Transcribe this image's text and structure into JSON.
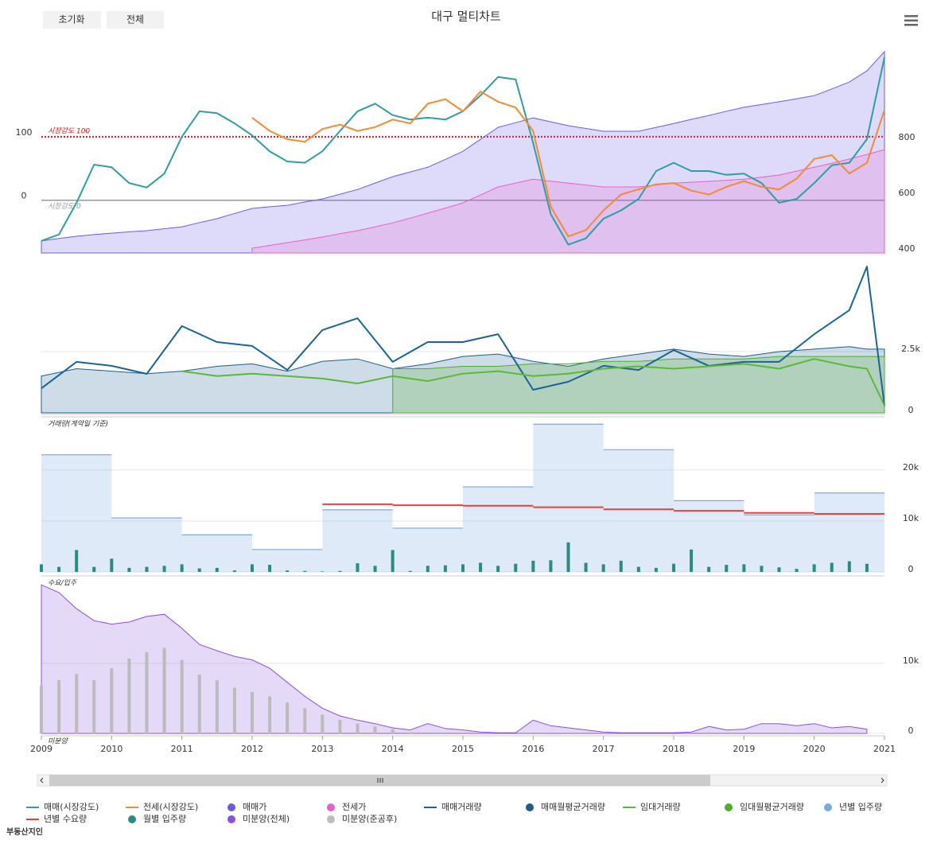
{
  "title": "대구 멀티차트",
  "buttons": [
    "초기화",
    "전체"
  ],
  "logo": "부동산지인",
  "chart_data": [
    {
      "type": "line",
      "xlim": [
        2009,
        2021
      ],
      "ylim": [
        -83,
        240
      ],
      "yticks": [
        0,
        100
      ],
      "y2lim": [
        386,
        1123
      ],
      "y2ticks": [
        400,
        600,
        800
      ],
      "grid": false,
      "x": [
        2009,
        2009.25,
        2009.5,
        2009.75,
        2010,
        2010.25,
        2010.5,
        2010.75,
        2011,
        2011.25,
        2011.5,
        2011.75,
        2012,
        2012.25,
        2012.5,
        2012.75,
        2013,
        2013.25,
        2013.5,
        2013.75,
        2014,
        2014.25,
        2014.5,
        2014.75,
        2015,
        2015.25,
        2015.5,
        2015.75,
        2016,
        2016.25,
        2016.5,
        2016.75,
        2017,
        2017.25,
        2017.5,
        2017.75,
        2018,
        2018.25,
        2018.5,
        2018.75,
        2019,
        2019.25,
        2019.5,
        2019.75,
        2020,
        2020.25,
        2020.5,
        2020.75,
        2021
      ],
      "plot_lines": [
        {
          "value": 100,
          "label": "시장강도 100",
          "color": "#e01010"
        },
        {
          "value": 0,
          "label": "시장강도 0",
          "color": "#999999"
        }
      ],
      "series": [
        {
          "name": "매매(시장강도)",
          "kind": "line",
          "color": "#2f9ea3",
          "values": [
            -64,
            -54,
            -4,
            56,
            52,
            27,
            20,
            42,
            100,
            140,
            137,
            121,
            102,
            77,
            61,
            59,
            77,
            109,
            140,
            152,
            134,
            127,
            130,
            127,
            140,
            165,
            194,
            190,
            90,
            -22,
            -70,
            -60,
            -29,
            -16,
            2,
            46,
            59,
            46,
            46,
            40,
            42,
            27,
            -4,
            2,
            27,
            55,
            59,
            96,
            225
          ]
        },
        {
          "name": "전세(시장강도)",
          "kind": "line",
          "color": "#f58a32",
          "values": [
            null,
            null,
            null,
            null,
            null,
            null,
            null,
            null,
            null,
            null,
            null,
            null,
            130,
            109,
            96,
            92,
            112,
            119,
            109,
            115,
            127,
            121,
            152,
            159,
            140,
            171,
            155,
            146,
            109,
            -10,
            -57,
            -47,
            -16,
            9,
            17,
            25,
            27,
            15,
            9,
            21,
            30,
            21,
            17,
            34,
            65,
            71,
            42,
            59,
            142
          ]
        },
        {
          "name": "매매가",
          "kind": "area",
          "axis": "y2",
          "color": "#6b5ce7",
          "values": [
            429,
            438,
            446,
            452,
            457,
            462,
            466,
            473,
            480,
            495,
            509,
            528,
            546,
            552,
            557,
            569,
            580,
            597,
            614,
            637,
            660,
            677,
            694,
            722,
            751,
            794,
            837,
            854,
            871,
            857,
            843,
            833,
            823,
            823,
            823,
            837,
            851,
            866,
            880,
            895,
            909,
            919,
            929,
            940,
            951,
            975,
            1000,
            1040,
            1109
          ]
        },
        {
          "name": "전세가",
          "kind": "area",
          "axis": "y2",
          "color": "#e860c8",
          "values": [
            null,
            null,
            null,
            null,
            null,
            null,
            null,
            null,
            null,
            null,
            null,
            null,
            403,
            413,
            423,
            433,
            443,
            455,
            466,
            480,
            494,
            511,
            529,
            547,
            566,
            594,
            623,
            637,
            651,
            644,
            637,
            630,
            623,
            623,
            623,
            630,
            637,
            640,
            643,
            647,
            651,
            658,
            666,
            680,
            694,
            708,
            723,
            740,
            757
          ]
        }
      ]
    },
    {
      "type": "line",
      "xlim": [
        2009,
        2021
      ],
      "ylim": [
        0,
        6200
      ],
      "yticks": [
        0,
        {
          "value": 2500,
          "label": "2.5k"
        }
      ],
      "grid": true,
      "axis_label": "거래량(계약일 기준)",
      "x": [
        2009,
        2009.5,
        2010,
        2010.5,
        2011,
        2011.5,
        2012,
        2012.5,
        2013,
        2013.5,
        2014,
        2014.5,
        2015,
        2015.5,
        2016,
        2016.5,
        2017,
        2017.5,
        2018,
        2018.5,
        2019,
        2019.5,
        2020,
        2020.5,
        2020.75,
        2021
      ],
      "series": [
        {
          "name": "매매거래량",
          "kind": "line",
          "color": "#1a6496",
          "values": [
            1000,
            2080,
            1920,
            1590,
            3540,
            2890,
            2730,
            1750,
            3380,
            3860,
            2080,
            2890,
            2890,
            3210,
            940,
            1270,
            1920,
            1750,
            2560,
            1920,
            2080,
            2080,
            3210,
            4190,
            5970,
            290
          ]
        },
        {
          "name": "매매월평균거래량",
          "kind": "area",
          "color": "#1a5f8c",
          "values": [
            1500,
            1800,
            1700,
            1600,
            1700,
            1900,
            2000,
            1700,
            2100,
            2200,
            1800,
            2000,
            2300,
            2400,
            2100,
            1900,
            2200,
            2400,
            2600,
            2400,
            2300,
            2500,
            2600,
            2700,
            2600,
            2600
          ]
        },
        {
          "name": "임대거래량",
          "kind": "line",
          "color": "#5cb83a",
          "values": [
            null,
            null,
            null,
            null,
            1700,
            1500,
            1600,
            1500,
            1400,
            1200,
            1500,
            1300,
            1600,
            1700,
            1500,
            1600,
            1800,
            1900,
            1800,
            1900,
            2000,
            1800,
            2200,
            1900,
            1800,
            300
          ]
        },
        {
          "name": "임대월평균거래량",
          "kind": "area",
          "color": "#4cae2c",
          "values": [
            null,
            null,
            null,
            null,
            null,
            null,
            null,
            null,
            null,
            null,
            1800,
            1800,
            1900,
            1900,
            2000,
            2000,
            2100,
            2100,
            2200,
            2200,
            2200,
            2300,
            2300,
            2300,
            2300,
            2300
          ]
        }
      ]
    },
    {
      "type": "step",
      "xlim": [
        2009,
        2021
      ],
      "ylim": [
        0,
        29200
      ],
      "yticks": [
        0,
        {
          "value": 10000,
          "label": "10k"
        },
        {
          "value": 20000,
          "label": "20k"
        }
      ],
      "grid": true,
      "axis_label": "수요/입주",
      "x": [
        2009,
        2010,
        2011,
        2012,
        2013,
        2014,
        2015,
        2016,
        2017,
        2018,
        2019,
        2020
      ],
      "series": [
        {
          "name": "년별 입주량",
          "kind": "step-area",
          "color": "#7aaade",
          "values": [
            23000,
            10600,
            7300,
            4400,
            12200,
            8600,
            16700,
            29000,
            24000,
            14000,
            11200,
            15500
          ]
        },
        {
          "name": "년별 수요량",
          "kind": "step-line",
          "color": "#e84040",
          "values": [
            null,
            null,
            null,
            null,
            13300,
            13100,
            13000,
            12700,
            12300,
            12000,
            11600,
            11400
          ]
        }
      ]
    },
    {
      "type": "bar",
      "xlim": [
        2009,
        2021
      ],
      "ylim": [
        0,
        29200
      ],
      "x": [
        2009,
        2009.25,
        2009.5,
        2009.75,
        2010,
        2010.25,
        2010.5,
        2010.75,
        2011,
        2011.25,
        2011.5,
        2011.75,
        2012,
        2012.25,
        2012.5,
        2012.75,
        2013,
        2013.25,
        2013.5,
        2013.75,
        2014,
        2014.25,
        2014.5,
        2014.75,
        2015,
        2015.25,
        2015.5,
        2015.75,
        2016,
        2016.25,
        2016.5,
        2016.75,
        2017,
        2017.25,
        2017.5,
        2017.75,
        2018,
        2018.25,
        2018.5,
        2018.75,
        2019,
        2019.25,
        2019.5,
        2019.75,
        2020,
        2020.25,
        2020.5,
        2020.75
      ],
      "series": [
        {
          "name": "월별 입주량",
          "kind": "bar",
          "color": "#2a8c80",
          "values": [
            1500,
            1000,
            4300,
            1000,
            2600,
            800,
            1000,
            1200,
            1500,
            700,
            800,
            300,
            1500,
            1400,
            300,
            200,
            100,
            200,
            1700,
            1200,
            4300,
            200,
            1200,
            1300,
            1500,
            1800,
            1200,
            1600,
            2200,
            2300,
            5800,
            1800,
            1500,
            2200,
            1000,
            800,
            1600,
            4400,
            1000,
            1400,
            1500,
            1200,
            900,
            600,
            1500,
            1800,
            2100,
            1600
          ]
        }
      ]
    },
    {
      "type": "area",
      "xlim": [
        2009,
        2021
      ],
      "ylim": [
        0,
        21000
      ],
      "yticks": [
        0,
        {
          "value": 10000,
          "label": "10k"
        }
      ],
      "grid": true,
      "axis_label": "미분양",
      "xticks": [
        2009,
        2010,
        2011,
        2012,
        2013,
        2014,
        2015,
        2016,
        2017,
        2018,
        2019,
        2020,
        2021
      ],
      "x": [
        2009,
        2009.25,
        2009.5,
        2009.75,
        2010,
        2010.25,
        2010.5,
        2010.75,
        2011,
        2011.25,
        2011.5,
        2011.75,
        2012,
        2012.25,
        2012.5,
        2012.75,
        2013,
        2013.25,
        2013.5,
        2013.75,
        2014,
        2014.25,
        2014.5,
        2014.75,
        2015,
        2015.25,
        2015.5,
        2015.75,
        2016,
        2016.25,
        2016.5,
        2016.75,
        2017,
        2017.25,
        2017.5,
        2017.75,
        2018,
        2018.25,
        2018.5,
        2018.75,
        2019,
        2019.25,
        2019.5,
        2019.75,
        2020,
        2020.25,
        2020.5,
        2020.75
      ],
      "series": [
        {
          "name": "미분양(전체)",
          "kind": "area",
          "color": "#8a50e0",
          "values": [
            21200,
            20100,
            17800,
            16100,
            15600,
            15900,
            16700,
            17000,
            15000,
            12700,
            11800,
            11000,
            10500,
            9300,
            7300,
            5300,
            3600,
            2500,
            1900,
            1400,
            800,
            500,
            1400,
            700,
            500,
            200,
            100,
            100,
            1900,
            1100,
            800,
            500,
            200,
            100,
            100,
            100,
            100,
            200,
            1000,
            500,
            600,
            1400,
            1400,
            1100,
            1400,
            800,
            1000,
            600
          ]
        },
        {
          "name": "미분양(준공후)",
          "kind": "bar",
          "color": "#bbbbbb",
          "values": [
            6800,
            7600,
            8500,
            7600,
            9300,
            10700,
            11600,
            12200,
            10500,
            8400,
            7600,
            6500,
            5900,
            5300,
            4400,
            3600,
            2700,
            1900,
            1400,
            1000,
            600,
            200,
            0,
            0,
            0,
            0,
            0,
            0,
            0,
            0,
            0,
            0,
            0,
            0,
            0,
            0,
            0,
            0,
            0,
            0,
            0,
            0,
            0,
            0,
            0,
            0,
            0,
            0
          ]
        }
      ]
    }
  ]
}
